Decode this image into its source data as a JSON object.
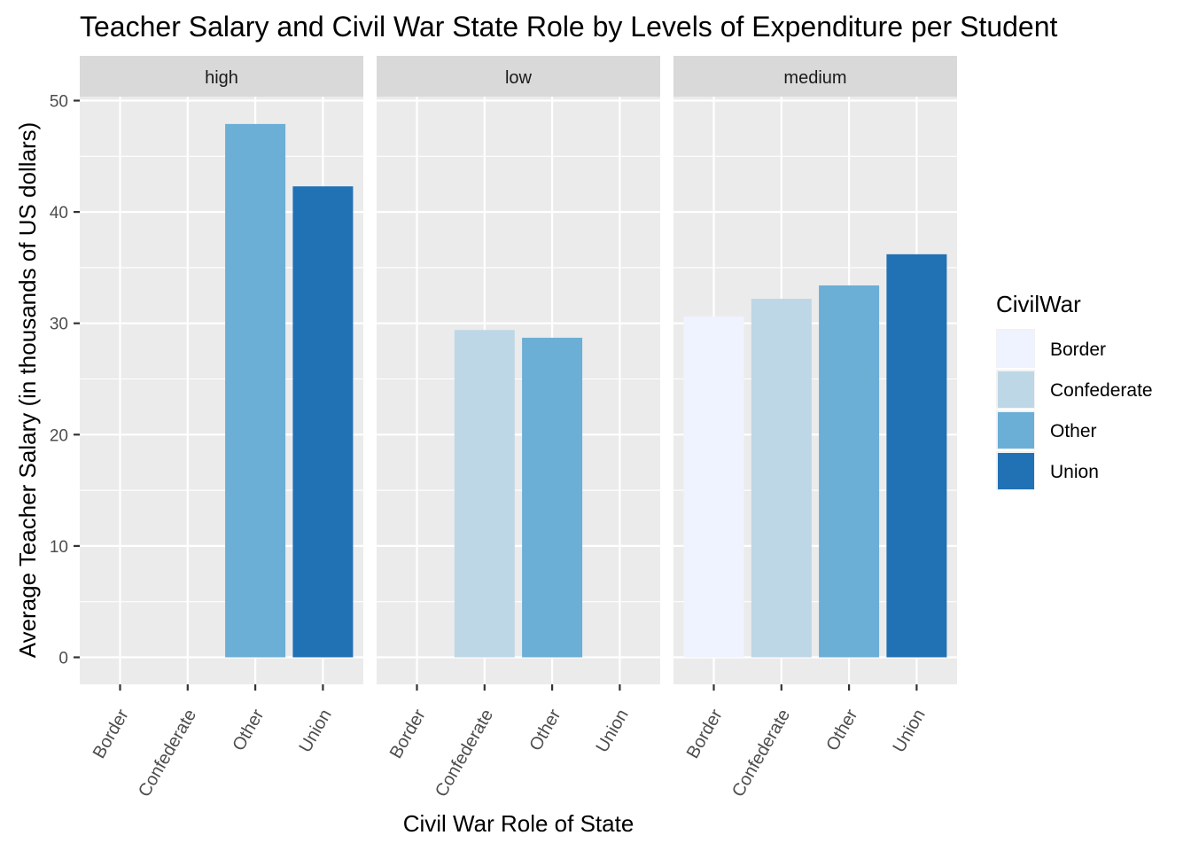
{
  "chart_data": {
    "type": "bar",
    "title": "Teacher Salary and Civil War State Role by Levels of Expenditure per Student",
    "xlabel": "Civil War Role of State",
    "ylabel": "Average Teacher Salary (in thousands of US dollars)",
    "categories": [
      "Border",
      "Confederate",
      "Other",
      "Union"
    ],
    "ylim": [
      -2.4,
      52
    ],
    "yticks": [
      0,
      10,
      20,
      30,
      40,
      50
    ],
    "grid": true,
    "legend": {
      "title": "CivilWar",
      "position": "right",
      "entries": [
        "Border",
        "Confederate",
        "Other",
        "Union"
      ]
    },
    "colors": {
      "Border": "#eff3ff",
      "Confederate": "#bdd7e7",
      "Other": "#6baed6",
      "Union": "#2171b5"
    },
    "facets": [
      {
        "label": "high",
        "bars": [
          {
            "category": "Other",
            "value": 47.9
          },
          {
            "category": "Union",
            "value": 42.3
          }
        ]
      },
      {
        "label": "low",
        "bars": [
          {
            "category": "Confederate",
            "value": 29.4
          },
          {
            "category": "Other",
            "value": 28.7
          }
        ]
      },
      {
        "label": "medium",
        "bars": [
          {
            "category": "Border",
            "value": 30.6
          },
          {
            "category": "Confederate",
            "value": 32.2
          },
          {
            "category": "Other",
            "value": 33.4
          },
          {
            "category": "Union",
            "value": 36.2
          }
        ]
      }
    ]
  }
}
